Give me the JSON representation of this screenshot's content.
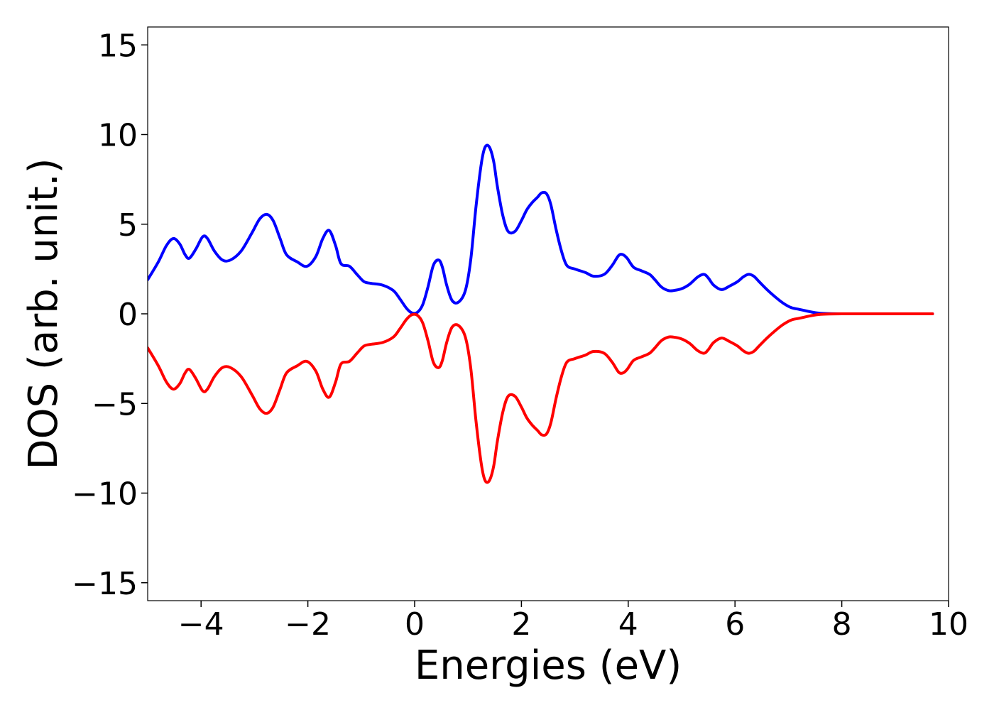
{
  "chart_data": {
    "type": "line",
    "xlabel": "Energies (eV)",
    "ylabel": "DOS (arb. unit.)",
    "xlim": [
      -5,
      10
    ],
    "ylim": [
      -16,
      16
    ],
    "xticks": [
      -4,
      -2,
      0,
      2,
      4,
      6,
      8,
      10
    ],
    "yticks": [
      -15,
      -10,
      -5,
      0,
      5,
      10,
      15
    ],
    "xtick_labels": [
      "−4",
      "−2",
      "0",
      "2",
      "4",
      "6",
      "8",
      "10"
    ],
    "ytick_labels": [
      "−15",
      "−10",
      "−5",
      "0",
      "5",
      "10",
      "15"
    ],
    "grid": false,
    "legend": "none",
    "series": [
      {
        "color": "#0000ff",
        "x": [
          -5.0,
          -4.8,
          -4.65,
          -4.52,
          -4.4,
          -4.3,
          -4.22,
          -4.1,
          -3.97,
          -3.88,
          -3.75,
          -3.6,
          -3.45,
          -3.25,
          -3.05,
          -2.9,
          -2.77,
          -2.65,
          -2.52,
          -2.4,
          -2.2,
          -2.02,
          -1.85,
          -1.72,
          -1.6,
          -1.48,
          -1.38,
          -1.22,
          -1.08,
          -0.95,
          -0.82,
          -0.6,
          -0.4,
          -0.28,
          -0.15,
          -0.05,
          0.05,
          0.15,
          0.25,
          0.35,
          0.45,
          0.52,
          0.6,
          0.7,
          0.82,
          0.95,
          1.05,
          1.15,
          1.25,
          1.32,
          1.4,
          1.48,
          1.55,
          1.65,
          1.75,
          1.88,
          2.0,
          2.1,
          2.2,
          2.3,
          2.38,
          2.47,
          2.55,
          2.65,
          2.75,
          2.85,
          3.0,
          3.2,
          3.35,
          3.55,
          3.7,
          3.82,
          3.9,
          3.98,
          4.1,
          4.25,
          4.4,
          4.5,
          4.62,
          4.75,
          4.85,
          5.0,
          5.15,
          5.3,
          5.42,
          5.5,
          5.6,
          5.75,
          5.9,
          6.05,
          6.15,
          6.25,
          6.35,
          6.45,
          6.6,
          6.75,
          6.9,
          7.05,
          7.2,
          7.4,
          7.6,
          8.0,
          9.0,
          9.7
        ],
        "values": [
          1.9,
          2.9,
          3.8,
          4.2,
          3.9,
          3.3,
          3.1,
          3.6,
          4.3,
          4.2,
          3.5,
          3.0,
          3.0,
          3.5,
          4.5,
          5.3,
          5.55,
          5.2,
          4.2,
          3.3,
          2.9,
          2.65,
          3.2,
          4.2,
          4.65,
          3.8,
          2.8,
          2.65,
          2.2,
          1.8,
          1.7,
          1.6,
          1.3,
          0.85,
          0.3,
          0.05,
          0.08,
          0.5,
          1.5,
          2.7,
          3.0,
          2.6,
          1.6,
          0.75,
          0.65,
          1.3,
          3.0,
          6.0,
          8.4,
          9.3,
          9.3,
          8.5,
          7.1,
          5.5,
          4.6,
          4.6,
          5.2,
          5.8,
          6.2,
          6.5,
          6.75,
          6.7,
          6.1,
          4.7,
          3.5,
          2.7,
          2.5,
          2.3,
          2.1,
          2.2,
          2.7,
          3.25,
          3.3,
          3.1,
          2.6,
          2.4,
          2.2,
          1.9,
          1.5,
          1.3,
          1.3,
          1.4,
          1.65,
          2.05,
          2.2,
          2.0,
          1.6,
          1.35,
          1.55,
          1.8,
          2.05,
          2.2,
          2.1,
          1.8,
          1.35,
          0.95,
          0.6,
          0.35,
          0.25,
          0.12,
          0.03,
          0.0,
          0.0,
          0.0
        ]
      },
      {
        "color": "#ff0000",
        "x": [
          -5.0,
          -4.8,
          -4.65,
          -4.52,
          -4.4,
          -4.3,
          -4.22,
          -4.1,
          -3.97,
          -3.88,
          -3.75,
          -3.6,
          -3.45,
          -3.25,
          -3.05,
          -2.9,
          -2.77,
          -2.65,
          -2.52,
          -2.4,
          -2.2,
          -2.02,
          -1.85,
          -1.72,
          -1.6,
          -1.48,
          -1.38,
          -1.22,
          -1.08,
          -0.95,
          -0.82,
          -0.6,
          -0.4,
          -0.28,
          -0.15,
          -0.05,
          0.05,
          0.15,
          0.25,
          0.35,
          0.45,
          0.52,
          0.6,
          0.7,
          0.82,
          0.95,
          1.05,
          1.15,
          1.25,
          1.32,
          1.4,
          1.48,
          1.55,
          1.65,
          1.75,
          1.88,
          2.0,
          2.1,
          2.2,
          2.3,
          2.38,
          2.47,
          2.55,
          2.65,
          2.75,
          2.85,
          3.0,
          3.2,
          3.35,
          3.55,
          3.7,
          3.82,
          3.9,
          3.98,
          4.1,
          4.25,
          4.4,
          4.5,
          4.62,
          4.75,
          4.85,
          5.0,
          5.15,
          5.3,
          5.42,
          5.5,
          5.6,
          5.75,
          5.9,
          6.05,
          6.15,
          6.25,
          6.35,
          6.45,
          6.6,
          6.75,
          6.9,
          7.05,
          7.2,
          7.4,
          7.6,
          8.0,
          9.0,
          9.7
        ],
        "values": [
          -1.9,
          -2.9,
          -3.8,
          -4.2,
          -3.9,
          -3.3,
          -3.1,
          -3.6,
          -4.3,
          -4.2,
          -3.5,
          -3.0,
          -3.0,
          -3.5,
          -4.5,
          -5.3,
          -5.55,
          -5.2,
          -4.2,
          -3.3,
          -2.9,
          -2.65,
          -3.2,
          -4.2,
          -4.65,
          -3.8,
          -2.8,
          -2.65,
          -2.2,
          -1.8,
          -1.7,
          -1.6,
          -1.3,
          -0.85,
          -0.3,
          -0.05,
          -0.08,
          -0.5,
          -1.5,
          -2.7,
          -3.0,
          -2.6,
          -1.6,
          -0.75,
          -0.65,
          -1.3,
          -3.0,
          -6.0,
          -8.4,
          -9.3,
          -9.3,
          -8.5,
          -7.1,
          -5.5,
          -4.6,
          -4.6,
          -5.2,
          -5.8,
          -6.2,
          -6.5,
          -6.75,
          -6.7,
          -6.1,
          -4.7,
          -3.5,
          -2.7,
          -2.5,
          -2.3,
          -2.1,
          -2.2,
          -2.7,
          -3.25,
          -3.3,
          -3.1,
          -2.6,
          -2.4,
          -2.2,
          -1.9,
          -1.5,
          -1.3,
          -1.3,
          -1.4,
          -1.65,
          -2.05,
          -2.2,
          -2.0,
          -1.6,
          -1.35,
          -1.55,
          -1.8,
          -2.05,
          -2.2,
          -2.1,
          -1.8,
          -1.35,
          -0.95,
          -0.6,
          -0.35,
          -0.25,
          -0.12,
          -0.03,
          0.0,
          0.0,
          0.0
        ]
      }
    ]
  }
}
